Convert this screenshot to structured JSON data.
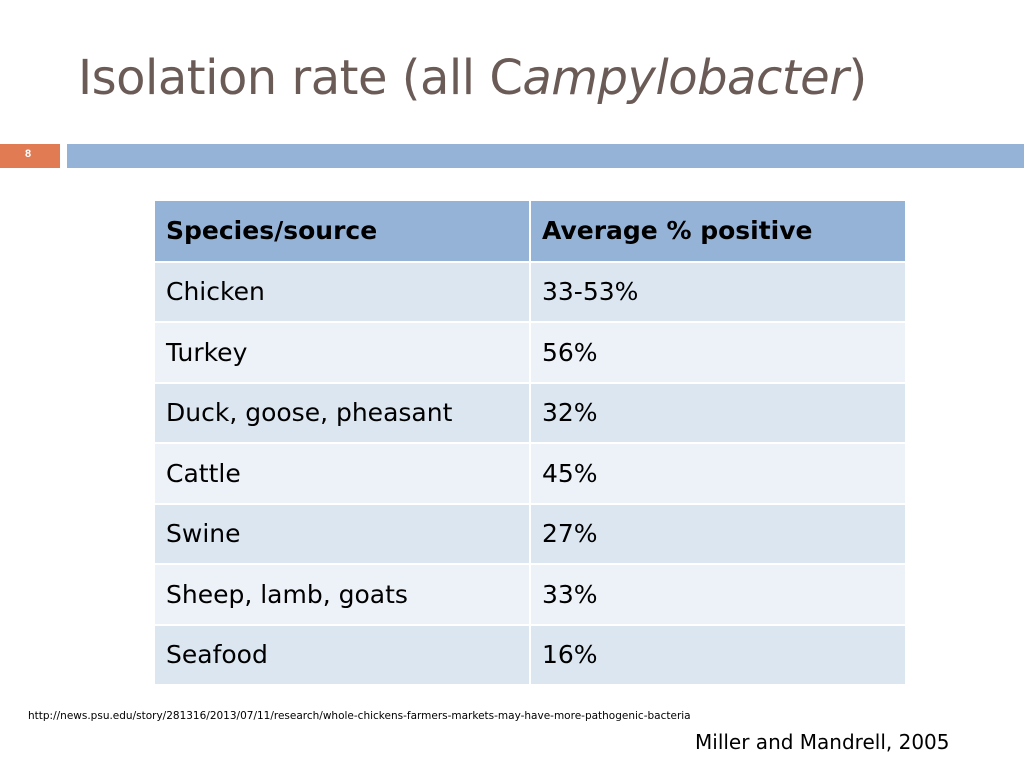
{
  "slide": {
    "title_prefix": "Isolation rate (all C",
    "title_italic": "ampylobacter",
    "title_suffix": ")",
    "number": "8"
  },
  "table": {
    "headers": [
      "Species/source",
      "Average % positive"
    ],
    "rows": [
      [
        "Chicken",
        "33-53%"
      ],
      [
        "Turkey",
        "56%"
      ],
      [
        "Duck, goose, pheasant",
        "32%"
      ],
      [
        "Cattle",
        "45%"
      ],
      [
        "Swine",
        "27%"
      ],
      [
        "Sheep, lamb, goats",
        "33%"
      ],
      [
        "Seafood",
        "16%"
      ]
    ]
  },
  "source_url": "http://news.psu.edu/story/281316/2013/07/11/research/whole-chickens-farmers-markets-may-have-more-pathogenic-bacteria",
  "citation": "Miller and Mandrell, 2005",
  "colors": {
    "title": "#6b5b56",
    "accent_orange": "#e07b53",
    "header_blue": "#95b3d7",
    "row_dark": "#dce6f1",
    "row_light": "#edf2f9"
  }
}
